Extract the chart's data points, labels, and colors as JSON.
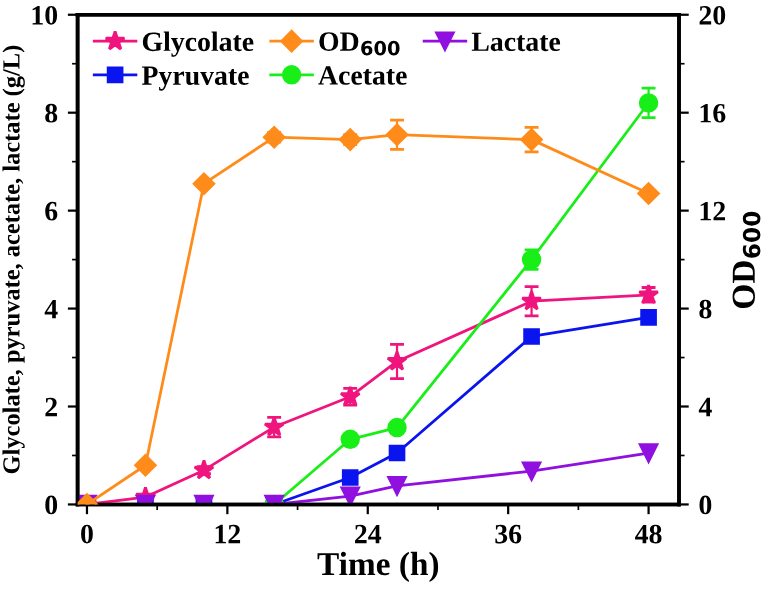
{
  "chart_data": {
    "type": "line",
    "xlabel": "Time (h)",
    "ylabel": "Glycolate, pyruvate, acetate, lactate (g/L)",
    "y2label": "OD$_{600}$",
    "x": [
      0,
      5,
      10,
      16,
      22.5,
      26.5,
      38,
      48
    ],
    "xlim": [
      -0.8,
      50.6
    ],
    "xticks": [
      0,
      12,
      24,
      36,
      48
    ],
    "ylim": [
      0,
      10
    ],
    "yticks": [
      0,
      2,
      4,
      6,
      8,
      10
    ],
    "y2lim": [
      0,
      20
    ],
    "y2ticks": [
      0,
      4,
      8,
      12,
      16,
      20
    ],
    "legend": "top left",
    "grid": false,
    "series": [
      {
        "name": "Glycolate",
        "color": "#f0147e",
        "marker": "star",
        "values": [
          0,
          0.15,
          0.7,
          1.58,
          2.2,
          2.92,
          4.15,
          4.28
        ],
        "errors": [
          null,
          null,
          0.07,
          0.2,
          0.17,
          0.35,
          0.3,
          0.15
        ]
      },
      {
        "name": "OD$_{600}$",
        "color": "#ff8c1a",
        "marker": "diamond",
        "axis": "y2",
        "values": [
          0,
          1.6,
          13.1,
          15.0,
          14.9,
          15.1,
          14.9,
          12.7
        ],
        "errors": [
          null,
          null,
          null,
          0.2,
          0.2,
          0.6,
          0.5,
          null
        ]
      },
      {
        "name": "Pyruvate",
        "color": "#0a14ef",
        "marker": "square",
        "values": [
          0,
          0,
          0,
          0,
          0.55,
          1.05,
          3.43,
          3.82
        ]
      },
      {
        "name": "Acetate",
        "color": "#18ee18",
        "marker": "circle",
        "values": [
          null,
          null,
          null,
          0,
          1.33,
          1.57,
          5.0,
          8.2
        ],
        "errors": [
          null,
          null,
          null,
          null,
          null,
          null,
          0.2,
          0.3
        ]
      },
      {
        "name": "Lactate",
        "color": "#9010e0",
        "marker": "triangle",
        "values": [
          0,
          0,
          0,
          0,
          0.17,
          0.38,
          0.68,
          1.05
        ]
      }
    ]
  }
}
